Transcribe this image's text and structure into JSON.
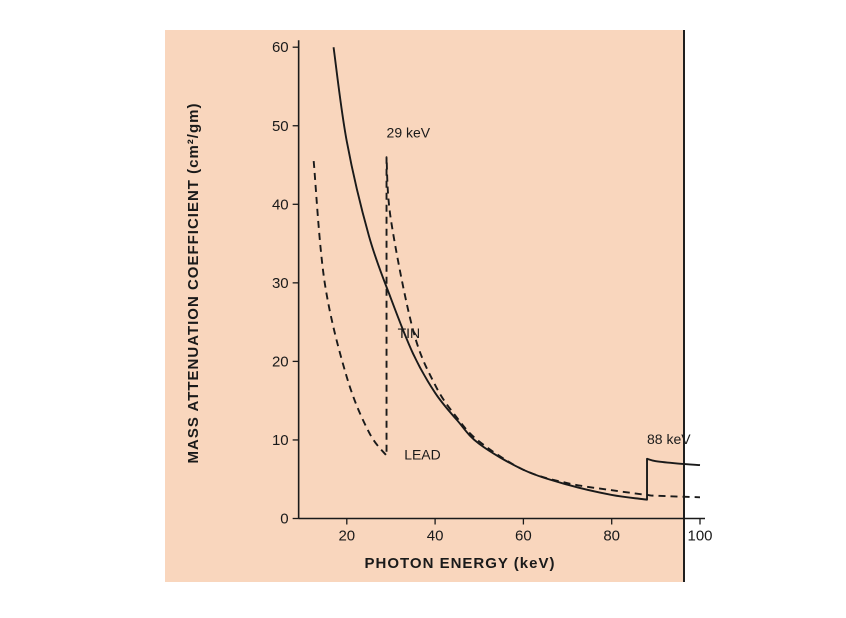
{
  "chart_data": {
    "type": "line",
    "xlabel": "PHOTON ENERGY (keV)",
    "ylabel": "MASS ATTENUATION COEFFICIENT (cm²/gm)",
    "xlim": [
      10,
      100
    ],
    "ylim": [
      0,
      60
    ],
    "xticks": [
      20,
      40,
      60,
      80,
      100
    ],
    "yticks": [
      0,
      10,
      20,
      30,
      40,
      50,
      60
    ],
    "grid": false,
    "series": [
      {
        "name": "LEAD",
        "style": "solid",
        "x": [
          17,
          20,
          25,
          30,
          35,
          40,
          45,
          50,
          60,
          70,
          80,
          88,
          88,
          90,
          95,
          100
        ],
        "y": [
          60,
          48,
          36,
          28,
          21,
          16,
          12.5,
          9.5,
          6.2,
          4.3,
          3.0,
          2.4,
          7.6,
          7.3,
          7.0,
          6.8
        ]
      },
      {
        "name": "TIN",
        "style": "dashed",
        "x": [
          12.5,
          15,
          20,
          25,
          29,
          29,
          30,
          35,
          40,
          45,
          50,
          60,
          70,
          80,
          88,
          90,
          100
        ],
        "y": [
          45.5,
          30,
          18,
          11,
          8,
          46,
          38,
          24,
          17,
          12.8,
          9.8,
          6.2,
          4.5,
          3.6,
          3.0,
          2.9,
          2.7
        ]
      }
    ],
    "annotations": [
      {
        "text": "29 keV",
        "x": 29,
        "y": 48.5
      },
      {
        "text": "88 keV",
        "x": 88,
        "y": 9.5
      },
      {
        "text": "TIN",
        "x": 31.5,
        "y": 23
      },
      {
        "text": "LEAD",
        "x": 33,
        "y": 7.5
      }
    ]
  }
}
